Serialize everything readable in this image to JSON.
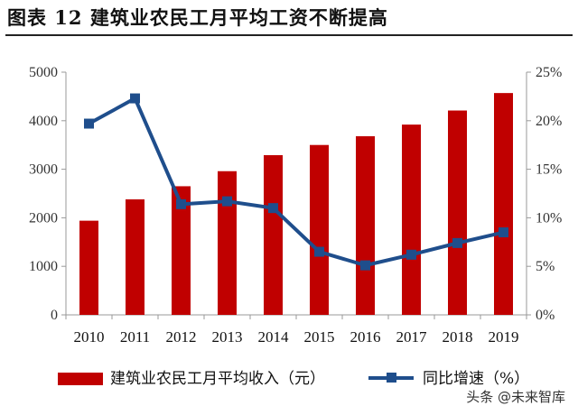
{
  "title": "图表 12  建筑业农民工月平均工资不断提高",
  "watermark": "头条 @未来智库",
  "colors": {
    "bar": "#c00000",
    "line": "#1f4e8c"
  },
  "chart_data": {
    "type": "bar+line",
    "categories": [
      "2010",
      "2011",
      "2012",
      "2013",
      "2014",
      "2015",
      "2016",
      "2017",
      "2018",
      "2019"
    ],
    "series": [
      {
        "name": "建筑业农民工月平均收入（元）",
        "type": "bar",
        "axis": "left",
        "values": [
          1940,
          2380,
          2650,
          2960,
          3290,
          3500,
          3680,
          3920,
          4210,
          4570
        ]
      },
      {
        "name": "同比增速（%）",
        "type": "line",
        "axis": "right",
        "values": [
          19.7,
          22.3,
          11.4,
          11.7,
          11.0,
          6.5,
          5.1,
          6.2,
          7.4,
          8.5
        ]
      }
    ],
    "y_left": {
      "ylim": [
        0,
        5000
      ],
      "ticks": [
        "0",
        "1000",
        "2000",
        "3000",
        "4000",
        "5000"
      ]
    },
    "y_right": {
      "ylim": [
        0,
        25
      ],
      "ticks": [
        "0%",
        "5%",
        "10%",
        "15%",
        "20%",
        "25%"
      ]
    },
    "grid": false,
    "legend_position": "bottom"
  }
}
